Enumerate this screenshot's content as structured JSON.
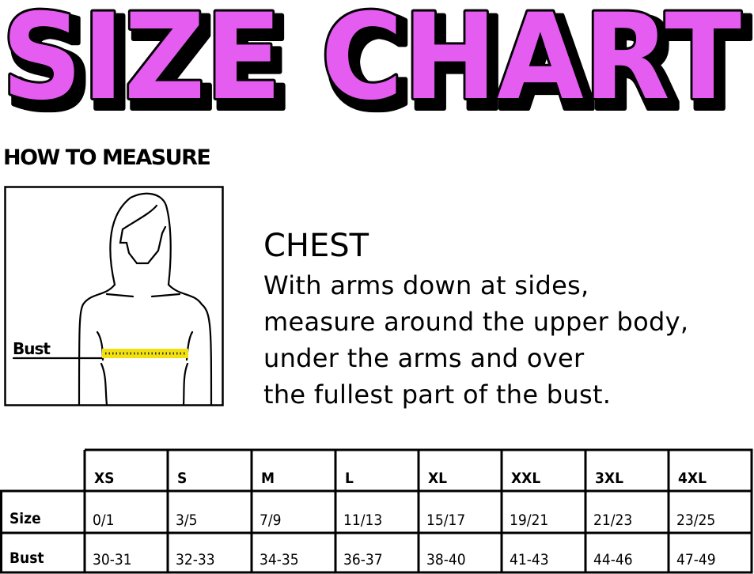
{
  "title": "SIZE CHART",
  "colors": {
    "title_fill": "#e45cf0",
    "title_outline": "#000000",
    "tape": "#f2e10f"
  },
  "how_to_measure": "HOW TO MEASURE",
  "figure_label": "Bust",
  "instructions": {
    "heading": "CHEST",
    "lines": [
      "With arms down at sides,",
      "measure around the upper body,",
      "under the arms and over",
      "the fullest part of the bust."
    ]
  },
  "table": {
    "columns": [
      "XS",
      "S",
      "M",
      "L",
      "XL",
      "XXL",
      "3XL",
      "4XL"
    ],
    "rows": [
      {
        "label": "Size",
        "values": [
          "0/1",
          "3/5",
          "7/9",
          "11/13",
          "15/17",
          "19/21",
          "21/23",
          "23/25"
        ]
      },
      {
        "label": "Bust",
        "values": [
          "30-31",
          "32-33",
          "34-35",
          "36-37",
          "38-40",
          "41-43",
          "44-46",
          "47-49"
        ]
      }
    ]
  }
}
